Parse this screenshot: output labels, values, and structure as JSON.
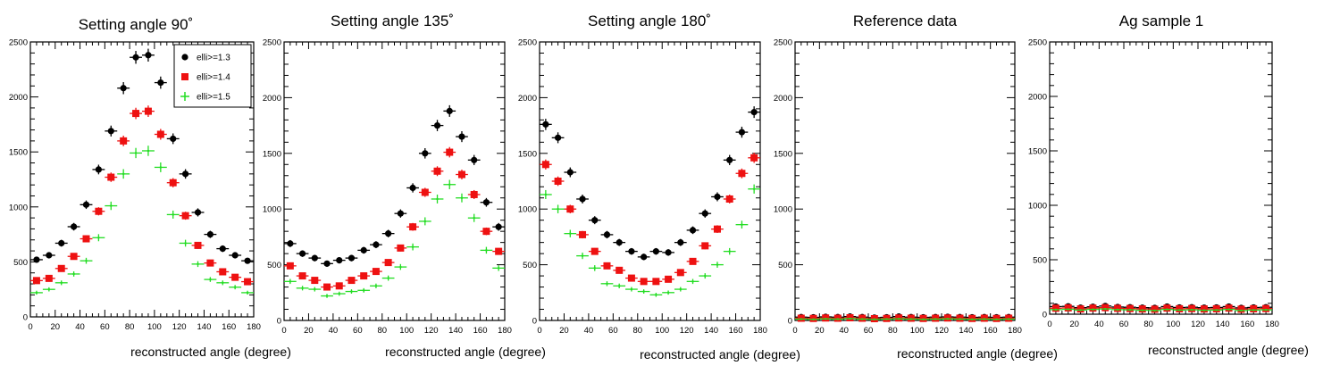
{
  "chart_data": [
    {
      "type": "scatter",
      "title": "Setting angle 90˚",
      "xlabel": "reconstructed angle (degree)",
      "ylabel": "",
      "xlim": [
        0,
        180
      ],
      "ylim": [
        0,
        2500
      ],
      "x_ticks": [
        "0",
        "20",
        "40",
        "60",
        "80",
        "100",
        "120",
        "140",
        "160",
        "180"
      ],
      "y_ticks": [
        "0",
        "500",
        "1000",
        "1500",
        "2000",
        "2500"
      ],
      "legend": true,
      "x": [
        5,
        15,
        25,
        35,
        45,
        55,
        65,
        75,
        85,
        95,
        105,
        115,
        125,
        135,
        145,
        155,
        165,
        175
      ],
      "series": [
        {
          "name": "elli>=1.3",
          "values": [
            520,
            560,
            670,
            820,
            1020,
            1340,
            1690,
            2080,
            2360,
            2380,
            2130,
            1620,
            1300,
            950,
            750,
            620,
            560,
            510
          ]
        },
        {
          "name": "elli>=1.4",
          "values": [
            330,
            350,
            440,
            550,
            710,
            960,
            1270,
            1600,
            1850,
            1870,
            1660,
            1220,
            920,
            650,
            490,
            410,
            360,
            320
          ]
        },
        {
          "name": "elli>=1.5",
          "values": [
            220,
            250,
            310,
            390,
            510,
            720,
            1010,
            1300,
            1490,
            1510,
            1360,
            930,
            670,
            480,
            340,
            310,
            270,
            220
          ]
        }
      ]
    },
    {
      "type": "scatter",
      "title": "Setting angle 135˚",
      "xlabel": "reconstructed angle (degree)",
      "ylabel": "",
      "xlim": [
        0,
        180
      ],
      "ylim": [
        0,
        2500
      ],
      "x_ticks": [
        "0",
        "20",
        "40",
        "60",
        "80",
        "100",
        "120",
        "140",
        "160",
        "180"
      ],
      "y_ticks": [
        "0",
        "500",
        "1000",
        "1500",
        "2000",
        "2500"
      ],
      "legend": false,
      "x": [
        5,
        15,
        25,
        35,
        45,
        55,
        65,
        75,
        85,
        95,
        105,
        115,
        125,
        135,
        145,
        155,
        165,
        175
      ],
      "series": [
        {
          "name": "elli>=1.3",
          "values": [
            690,
            600,
            560,
            510,
            540,
            560,
            630,
            680,
            780,
            960,
            1190,
            1500,
            1750,
            1880,
            1650,
            1440,
            1060,
            840
          ]
        },
        {
          "name": "elli>=1.4",
          "values": [
            490,
            400,
            360,
            300,
            310,
            360,
            400,
            440,
            520,
            650,
            840,
            1150,
            1340,
            1510,
            1310,
            1130,
            800,
            620
          ]
        },
        {
          "name": "elli>=1.5",
          "values": [
            350,
            290,
            280,
            220,
            240,
            260,
            270,
            310,
            380,
            480,
            660,
            890,
            1090,
            1220,
            1100,
            920,
            630,
            470
          ]
        }
      ]
    },
    {
      "type": "scatter",
      "title": "Setting angle 180˚",
      "xlabel": "reconstructed angle (degree)",
      "ylabel": "",
      "xlim": [
        0,
        180
      ],
      "ylim": [
        0,
        2500
      ],
      "x_ticks": [
        "0",
        "20",
        "40",
        "60",
        "80",
        "100",
        "120",
        "140",
        "160",
        "180"
      ],
      "y_ticks": [
        "0",
        "500",
        "1000",
        "1500",
        "2000",
        "2500"
      ],
      "legend": false,
      "x": [
        5,
        15,
        25,
        35,
        45,
        55,
        65,
        75,
        85,
        95,
        105,
        115,
        125,
        135,
        145,
        155,
        165,
        175
      ],
      "series": [
        {
          "name": "elli>=1.3",
          "values": [
            1760,
            1640,
            1330,
            1090,
            900,
            770,
            700,
            620,
            570,
            620,
            610,
            700,
            810,
            960,
            1110,
            1440,
            1690,
            1870
          ]
        },
        {
          "name": "elli>=1.4",
          "values": [
            1400,
            1250,
            1000,
            770,
            620,
            490,
            450,
            380,
            350,
            350,
            370,
            430,
            530,
            670,
            820,
            1090,
            1320,
            1460
          ]
        },
        {
          "name": "elli>=1.5",
          "values": [
            1130,
            1000,
            780,
            580,
            470,
            330,
            310,
            280,
            260,
            230,
            250,
            280,
            350,
            400,
            500,
            620,
            860,
            1180
          ]
        }
      ]
    },
    {
      "type": "scatter",
      "title": "Reference data",
      "xlabel": "reconstructed angle (degree)",
      "ylabel": "",
      "xlim": [
        0,
        180
      ],
      "ylim": [
        0,
        2500
      ],
      "x_ticks": [
        "0",
        "20",
        "40",
        "60",
        "80",
        "100",
        "120",
        "140",
        "160",
        "180"
      ],
      "y_ticks": [
        "0",
        "500",
        "1000",
        "1500",
        "2000",
        "2500"
      ],
      "legend": false,
      "x": [
        5,
        15,
        25,
        35,
        45,
        55,
        65,
        75,
        85,
        95,
        105,
        115,
        125,
        135,
        145,
        155,
        165,
        175
      ],
      "series": [
        {
          "name": "elli>=1.3",
          "values": [
            30,
            28,
            32,
            30,
            35,
            30,
            25,
            28,
            35,
            30,
            28,
            30,
            32,
            30,
            28,
            30,
            28,
            30
          ]
        },
        {
          "name": "elli>=1.4",
          "values": [
            20,
            18,
            22,
            20,
            24,
            20,
            16,
            18,
            22,
            20,
            18,
            20,
            22,
            20,
            18,
            20,
            18,
            20
          ]
        },
        {
          "name": "elli>=1.5",
          "values": [
            12,
            10,
            14,
            12,
            16,
            12,
            10,
            12,
            14,
            12,
            10,
            12,
            14,
            12,
            10,
            12,
            10,
            12
          ]
        }
      ]
    },
    {
      "type": "scatter",
      "title": "Ag sample 1",
      "xlabel": "reconstructed angle (degree)",
      "ylabel": "",
      "xlim": [
        0,
        180
      ],
      "ylim": [
        0,
        2500
      ],
      "x_ticks": [
        "0",
        "20",
        "40",
        "60",
        "80",
        "100",
        "120",
        "140",
        "160",
        "180"
      ],
      "y_ticks": [
        "0",
        "500",
        "1000",
        "1500",
        "2000",
        "2500"
      ],
      "legend": false,
      "x": [
        5,
        15,
        25,
        35,
        45,
        55,
        65,
        75,
        85,
        95,
        105,
        115,
        125,
        135,
        145,
        155,
        165,
        175
      ],
      "series": [
        {
          "name": "elli>=1.3",
          "values": [
            70,
            72,
            60,
            68,
            75,
            66,
            64,
            60,
            58,
            70,
            62,
            64,
            60,
            62,
            70,
            58,
            62,
            64
          ]
        },
        {
          "name": "elli>=1.4",
          "values": [
            55,
            58,
            48,
            56,
            60,
            54,
            52,
            48,
            46,
            56,
            50,
            52,
            48,
            50,
            56,
            46,
            50,
            52
          ]
        },
        {
          "name": "elli>=1.5",
          "values": [
            42,
            45,
            38,
            44,
            48,
            42,
            40,
            36,
            34,
            44,
            38,
            40,
            36,
            38,
            44,
            34,
            38,
            40
          ]
        }
      ]
    }
  ],
  "series_colors": [
    "#000000",
    "#ee1111",
    "#22dd22"
  ],
  "series_markers": [
    "circle",
    "square",
    "cross"
  ]
}
